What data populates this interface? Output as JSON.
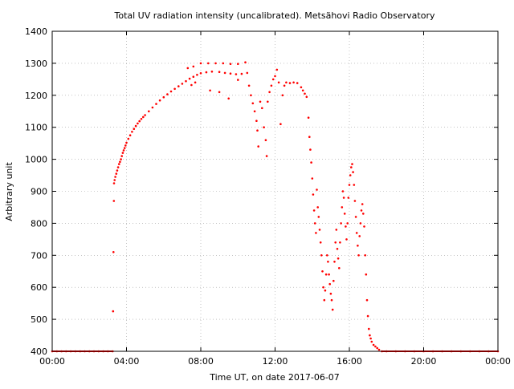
{
  "chart_data": {
    "type": "scatter",
    "title": "Total UV radiation intensity (uncalibrated). Metsähovi Radio Observatory",
    "xlabel": "Time UT, on date 2017-06-07",
    "ylabel": "Arbitrary unit",
    "xlim": [
      0,
      24
    ],
    "ylim": [
      400,
      1400
    ],
    "x_ticks": [
      0,
      4,
      8,
      12,
      16,
      20,
      24
    ],
    "x_tick_labels": [
      "00:00",
      "04:00",
      "08:00",
      "12:00",
      "16:00",
      "20:00",
      "00:00"
    ],
    "y_ticks": [
      400,
      500,
      600,
      700,
      800,
      900,
      1000,
      1100,
      1200,
      1300,
      1400
    ],
    "y_tick_labels": [
      "400",
      "500",
      "600",
      "700",
      "800",
      "900",
      "1000",
      "1100",
      "1200",
      "1300",
      "1400"
    ],
    "grid": true,
    "legend": "none",
    "marker_color": "#ff0000",
    "series": [
      {
        "points": [
          [
            0.0,
            400
          ],
          [
            0.25,
            400
          ],
          [
            0.5,
            400
          ],
          [
            0.75,
            400
          ],
          [
            1.0,
            400
          ],
          [
            1.25,
            400
          ],
          [
            1.5,
            400
          ],
          [
            1.75,
            400
          ],
          [
            2.0,
            400
          ],
          [
            2.25,
            400
          ],
          [
            2.5,
            400
          ],
          [
            2.75,
            400
          ],
          [
            3.0,
            400
          ],
          [
            3.25,
            400
          ],
          [
            3.28,
            525
          ],
          [
            3.3,
            710
          ],
          [
            3.32,
            870
          ],
          [
            3.33,
            925
          ],
          [
            3.36,
            935
          ],
          [
            3.4,
            945
          ],
          [
            3.45,
            955
          ],
          [
            3.5,
            965
          ],
          [
            3.55,
            975
          ],
          [
            3.6,
            985
          ],
          [
            3.65,
            992
          ],
          [
            3.7,
            1000
          ],
          [
            3.75,
            1010
          ],
          [
            3.8,
            1020
          ],
          [
            3.85,
            1028
          ],
          [
            3.9,
            1035
          ],
          [
            3.95,
            1043
          ],
          [
            4.0,
            1052
          ],
          [
            4.1,
            1064
          ],
          [
            4.2,
            1075
          ],
          [
            4.3,
            1086
          ],
          [
            4.4,
            1095
          ],
          [
            4.5,
            1104
          ],
          [
            4.6,
            1112
          ],
          [
            4.7,
            1119
          ],
          [
            4.8,
            1126
          ],
          [
            4.9,
            1132
          ],
          [
            5.0,
            1138
          ],
          [
            5.2,
            1150
          ],
          [
            5.4,
            1162
          ],
          [
            5.6,
            1173
          ],
          [
            5.8,
            1184
          ],
          [
            6.0,
            1194
          ],
          [
            6.2,
            1203
          ],
          [
            6.4,
            1212
          ],
          [
            6.6,
            1220
          ],
          [
            6.8,
            1228
          ],
          [
            7.0,
            1236
          ],
          [
            7.2,
            1244
          ],
          [
            7.4,
            1252
          ],
          [
            7.6,
            1258
          ],
          [
            7.8,
            1264
          ],
          [
            8.0,
            1269
          ],
          [
            8.3,
            1272
          ],
          [
            8.6,
            1274
          ],
          [
            9.0,
            1273
          ],
          [
            9.3,
            1270
          ],
          [
            9.6,
            1268
          ],
          [
            9.9,
            1266
          ],
          [
            10.2,
            1267
          ],
          [
            10.5,
            1270
          ],
          [
            7.3,
            1285
          ],
          [
            7.6,
            1290
          ],
          [
            8.0,
            1300
          ],
          [
            8.4,
            1300
          ],
          [
            8.8,
            1300
          ],
          [
            9.2,
            1300
          ],
          [
            9.6,
            1298
          ],
          [
            10.0,
            1298
          ],
          [
            10.4,
            1303
          ],
          [
            7.5,
            1232
          ],
          [
            7.7,
            1240
          ],
          [
            8.5,
            1215
          ],
          [
            9.0,
            1210
          ],
          [
            9.5,
            1190
          ],
          [
            10.0,
            1248
          ],
          [
            10.6,
            1230
          ],
          [
            10.7,
            1200
          ],
          [
            10.8,
            1175
          ],
          [
            10.9,
            1150
          ],
          [
            11.0,
            1120
          ],
          [
            11.05,
            1090
          ],
          [
            11.1,
            1040
          ],
          [
            11.2,
            1180
          ],
          [
            11.3,
            1160
          ],
          [
            11.4,
            1100
          ],
          [
            11.5,
            1060
          ],
          [
            11.55,
            1010
          ],
          [
            11.6,
            1180
          ],
          [
            11.7,
            1210
          ],
          [
            11.8,
            1230
          ],
          [
            11.9,
            1250
          ],
          [
            12.0,
            1260
          ],
          [
            12.1,
            1280
          ],
          [
            12.2,
            1240
          ],
          [
            12.3,
            1110
          ],
          [
            12.4,
            1200
          ],
          [
            12.5,
            1230
          ],
          [
            12.6,
            1240
          ],
          [
            12.8,
            1238
          ],
          [
            13.0,
            1240
          ],
          [
            13.2,
            1238
          ],
          [
            13.4,
            1225
          ],
          [
            13.5,
            1215
          ],
          [
            13.6,
            1205
          ],
          [
            13.7,
            1195
          ],
          [
            13.8,
            1130
          ],
          [
            13.85,
            1070
          ],
          [
            13.9,
            1030
          ],
          [
            13.95,
            990
          ],
          [
            14.0,
            940
          ],
          [
            14.05,
            890
          ],
          [
            14.1,
            840
          ],
          [
            14.15,
            800
          ],
          [
            14.2,
            770
          ],
          [
            14.25,
            905
          ],
          [
            14.3,
            850
          ],
          [
            14.35,
            820
          ],
          [
            14.4,
            780
          ],
          [
            14.45,
            740
          ],
          [
            14.5,
            700
          ],
          [
            14.55,
            650
          ],
          [
            14.6,
            600
          ],
          [
            14.65,
            560
          ],
          [
            14.7,
            590
          ],
          [
            14.75,
            640
          ],
          [
            14.8,
            700
          ],
          [
            14.85,
            680
          ],
          [
            14.9,
            640
          ],
          [
            14.95,
            610
          ],
          [
            15.0,
            580
          ],
          [
            15.05,
            560
          ],
          [
            15.1,
            530
          ],
          [
            15.15,
            620
          ],
          [
            15.2,
            680
          ],
          [
            15.25,
            740
          ],
          [
            15.3,
            780
          ],
          [
            15.35,
            720
          ],
          [
            15.4,
            690
          ],
          [
            15.45,
            660
          ],
          [
            15.5,
            740
          ],
          [
            15.55,
            800
          ],
          [
            15.6,
            850
          ],
          [
            15.65,
            900
          ],
          [
            15.7,
            880
          ],
          [
            15.75,
            830
          ],
          [
            15.8,
            790
          ],
          [
            15.85,
            750
          ],
          [
            15.9,
            800
          ],
          [
            15.95,
            880
          ],
          [
            16.0,
            920
          ],
          [
            16.05,
            950
          ],
          [
            16.1,
            975
          ],
          [
            16.15,
            985
          ],
          [
            16.2,
            960
          ],
          [
            16.25,
            920
          ],
          [
            16.3,
            870
          ],
          [
            16.35,
            820
          ],
          [
            16.4,
            770
          ],
          [
            16.45,
            730
          ],
          [
            16.5,
            700
          ],
          [
            16.55,
            760
          ],
          [
            16.6,
            800
          ],
          [
            16.65,
            840
          ],
          [
            16.7,
            860
          ],
          [
            16.75,
            830
          ],
          [
            16.8,
            790
          ],
          [
            16.85,
            700
          ],
          [
            16.9,
            640
          ],
          [
            16.95,
            560
          ],
          [
            17.0,
            510
          ],
          [
            17.05,
            470
          ],
          [
            17.1,
            450
          ],
          [
            17.15,
            440
          ],
          [
            17.2,
            430
          ],
          [
            17.3,
            420
          ],
          [
            17.4,
            415
          ],
          [
            17.5,
            410
          ],
          [
            17.6,
            405
          ],
          [
            17.75,
            400
          ],
          [
            18.0,
            400
          ],
          [
            18.5,
            400
          ],
          [
            19.0,
            400
          ],
          [
            19.5,
            400
          ],
          [
            20.0,
            400
          ],
          [
            20.5,
            400
          ],
          [
            21.0,
            400
          ],
          [
            21.5,
            400
          ],
          [
            22.0,
            400
          ],
          [
            22.5,
            400
          ],
          [
            23.0,
            400
          ],
          [
            23.5,
            400
          ],
          [
            24.0,
            400
          ]
        ]
      }
    ]
  }
}
